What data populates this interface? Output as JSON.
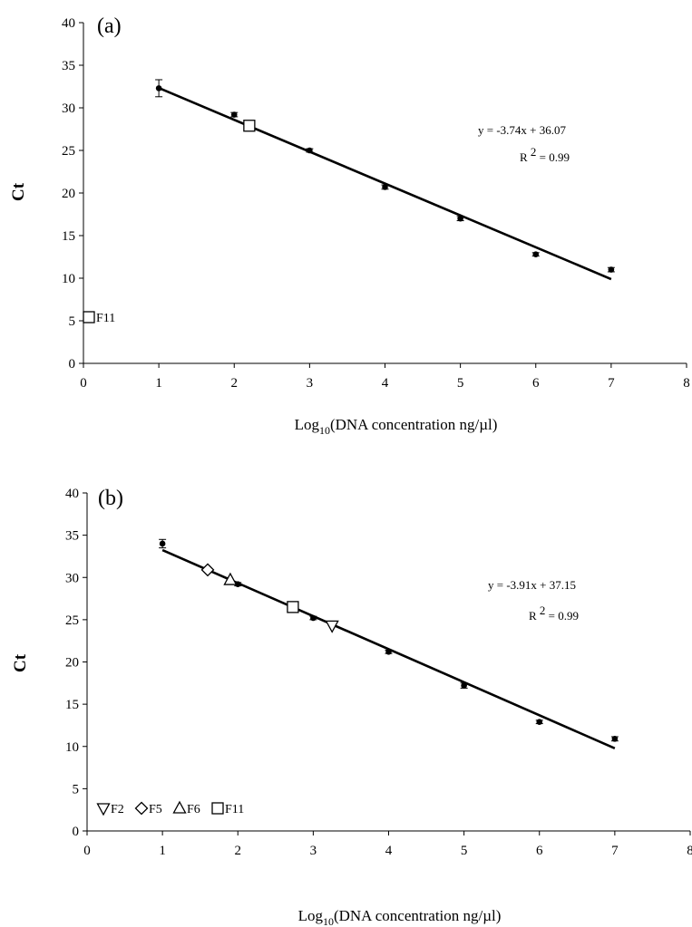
{
  "chart_data": [
    {
      "type": "scatter",
      "panel_label": "(a)",
      "xlabel": "Log10(DNA concentration ng/µl)",
      "xlabel_parts": {
        "pre": "Log",
        "sub": "10",
        "post": "(DNA concentration ng/µl)"
      },
      "ylabel": "Ct",
      "xlim": [
        0,
        8
      ],
      "ylim": [
        0,
        40
      ],
      "xticks": [
        0,
        1,
        2,
        3,
        4,
        5,
        6,
        7,
        8
      ],
      "yticks": [
        0,
        5,
        10,
        15,
        20,
        25,
        30,
        35,
        40
      ],
      "series": [
        {
          "marker": "dot",
          "x": [
            1,
            2,
            3,
            4,
            5,
            6,
            7
          ],
          "y": [
            32.3,
            29.2,
            25.0,
            20.7,
            17.0,
            12.8,
            11.0
          ],
          "yerr": [
            1.0,
            0.25,
            0.2,
            0.25,
            0.25,
            0.2,
            0.25
          ]
        },
        {
          "name": "F11",
          "marker": "square",
          "x": [
            2.2
          ],
          "y": [
            27.9
          ]
        }
      ],
      "fit": {
        "slope": -3.74,
        "intercept": 36.07,
        "x_range": [
          1,
          7
        ]
      },
      "equation": "y = -3.74x + 36.07",
      "r2_label": "R",
      "r2_sup": "2",
      "r2_value": " = 0.99",
      "legend": [
        {
          "marker": "square",
          "label": "F11"
        }
      ]
    },
    {
      "type": "scatter",
      "panel_label": "(b)",
      "xlabel": "Log10(DNA concentration ng/µl)",
      "xlabel_parts": {
        "pre": "Log",
        "sub": "10",
        "post": "(DNA concentration ng/µl)"
      },
      "ylabel": "Ct",
      "xlim": [
        0,
        8
      ],
      "ylim": [
        0,
        40
      ],
      "xticks": [
        0,
        1,
        2,
        3,
        4,
        5,
        6,
        7,
        8
      ],
      "yticks": [
        0,
        5,
        10,
        15,
        20,
        25,
        30,
        35,
        40
      ],
      "series": [
        {
          "marker": "dot",
          "x": [
            1,
            2,
            3,
            4,
            5,
            6,
            7
          ],
          "y": [
            34.0,
            29.2,
            25.2,
            21.2,
            17.2,
            12.9,
            10.9
          ],
          "yerr": [
            0.5,
            0.2,
            0.2,
            0.2,
            0.3,
            0.2,
            0.25
          ]
        },
        {
          "name": "F2",
          "marker": "triangle-down",
          "x": [
            3.25
          ],
          "y": [
            24.3
          ]
        },
        {
          "name": "F5",
          "marker": "diamond",
          "x": [
            1.6
          ],
          "y": [
            30.9
          ]
        },
        {
          "name": "F6",
          "marker": "triangle-up",
          "x": [
            1.9
          ],
          "y": [
            29.7
          ]
        },
        {
          "name": "F11",
          "marker": "square",
          "x": [
            2.73
          ],
          "y": [
            26.5
          ]
        }
      ],
      "fit": {
        "slope": -3.91,
        "intercept": 37.15,
        "x_range": [
          1,
          7
        ]
      },
      "equation": "y = -3.91x + 37.15",
      "r2_label": "R",
      "r2_sup": "2",
      "r2_value": " = 0.99",
      "legend": [
        {
          "marker": "triangle-down",
          "label": "F2"
        },
        {
          "marker": "diamond",
          "label": "F5"
        },
        {
          "marker": "triangle-up",
          "label": "F6"
        },
        {
          "marker": "square",
          "label": "F11"
        }
      ]
    }
  ]
}
